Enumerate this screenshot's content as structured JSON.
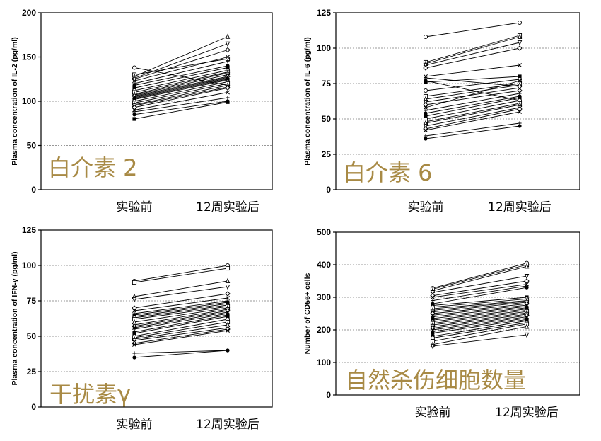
{
  "chart_data": [
    {
      "type": "line",
      "overlay_label": "白介素 2",
      "ylabel": "Plasma concentration of IL-2 (pg/ml)",
      "ylim": [
        0,
        200
      ],
      "yticks": [
        0,
        50,
        100,
        150,
        200
      ],
      "categories": [
        "实验前",
        "12周实验后"
      ],
      "grid": "horizontal dotted",
      "pairs": [
        [
          138,
          118
        ],
        [
          130,
          148
        ],
        [
          128,
          173
        ],
        [
          126,
          165
        ],
        [
          125,
          158
        ],
        [
          123,
          150
        ],
        [
          120,
          145
        ],
        [
          118,
          140
        ],
        [
          115,
          138
        ],
        [
          112,
          135
        ],
        [
          110,
          133
        ],
        [
          108,
          132
        ],
        [
          107,
          130
        ],
        [
          106,
          128
        ],
        [
          105,
          127
        ],
        [
          104,
          126
        ],
        [
          103,
          125
        ],
        [
          102,
          124
        ],
        [
          100,
          122
        ],
        [
          98,
          120
        ],
        [
          96,
          118
        ],
        [
          95,
          116
        ],
        [
          93,
          115
        ],
        [
          90,
          110
        ],
        [
          88,
          104
        ],
        [
          85,
          100
        ],
        [
          80,
          99
        ]
      ]
    },
    {
      "type": "line",
      "overlay_label": "白介素 6",
      "ylabel": "Plasma concentration of IL-6 (pg/ml)",
      "ylim": [
        0,
        125
      ],
      "yticks": [
        0,
        25,
        50,
        75,
        100,
        125
      ],
      "categories": [
        "实验前",
        "12周实验后"
      ],
      "grid": "horizontal dotted",
      "pairs": [
        [
          108,
          118
        ],
        [
          90,
          109
        ],
        [
          89,
          108
        ],
        [
          88,
          104
        ],
        [
          86,
          100
        ],
        [
          80,
          88
        ],
        [
          79,
          73
        ],
        [
          77,
          63
        ],
        [
          76,
          80
        ],
        [
          70,
          78
        ],
        [
          66,
          75
        ],
        [
          64,
          74
        ],
        [
          62,
          72
        ],
        [
          60,
          70
        ],
        [
          58,
          77
        ],
        [
          56,
          68
        ],
        [
          54,
          66
        ],
        [
          52,
          65
        ],
        [
          50,
          63
        ],
        [
          48,
          61
        ],
        [
          47,
          60
        ],
        [
          45,
          58
        ],
        [
          43,
          57
        ],
        [
          42,
          55
        ],
        [
          38,
          47
        ],
        [
          36,
          45
        ]
      ]
    },
    {
      "type": "line",
      "overlay_label": "干扰素γ",
      "ylabel": "Plasma concentration of IFN-γ (pg/ml)",
      "ylim": [
        0,
        125
      ],
      "yticks": [
        0,
        25,
        50,
        75,
        100,
        125
      ],
      "categories": [
        "实验前",
        "12周实验后"
      ],
      "grid": "horizontal dotted",
      "pairs": [
        [
          89,
          100
        ],
        [
          88,
          98
        ],
        [
          78,
          89
        ],
        [
          76,
          85
        ],
        [
          70,
          80
        ],
        [
          68,
          77
        ],
        [
          66,
          75
        ],
        [
          65,
          74
        ],
        [
          64,
          73
        ],
        [
          63,
          72
        ],
        [
          62,
          71
        ],
        [
          60,
          70
        ],
        [
          58,
          69
        ],
        [
          57,
          68
        ],
        [
          56,
          67
        ],
        [
          55,
          66
        ],
        [
          53,
          65
        ],
        [
          52,
          64
        ],
        [
          50,
          62
        ],
        [
          49,
          60
        ],
        [
          48,
          58
        ],
        [
          47,
          56
        ],
        [
          45,
          55
        ],
        [
          44,
          54
        ],
        [
          38,
          40
        ],
        [
          35,
          40
        ]
      ]
    },
    {
      "type": "line",
      "overlay_label": "自然杀伤细胞数量",
      "ylabel": "Number of CD56+ cells",
      "ylim": [
        0,
        500
      ],
      "yticks": [
        0,
        100,
        200,
        300,
        400,
        500
      ],
      "categories": [
        "实验前",
        "12周实验后"
      ],
      "grid": "horizontal dotted",
      "pairs": [
        [
          328,
          405
        ],
        [
          325,
          400
        ],
        [
          320,
          395
        ],
        [
          315,
          365
        ],
        [
          305,
          350
        ],
        [
          300,
          340
        ],
        [
          290,
          335
        ],
        [
          280,
          330
        ],
        [
          275,
          300
        ],
        [
          270,
          295
        ],
        [
          265,
          290
        ],
        [
          260,
          288
        ],
        [
          255,
          285
        ],
        [
          250,
          280
        ],
        [
          245,
          276
        ],
        [
          240,
          272
        ],
        [
          235,
          268
        ],
        [
          230,
          264
        ],
        [
          225,
          260
        ],
        [
          220,
          256
        ],
        [
          215,
          252
        ],
        [
          210,
          248
        ],
        [
          205,
          244
        ],
        [
          200,
          240
        ],
        [
          195,
          236
        ],
        [
          190,
          232
        ],
        [
          180,
          228
        ],
        [
          175,
          222
        ],
        [
          165,
          218
        ],
        [
          155,
          210
        ],
        [
          150,
          185
        ]
      ]
    }
  ]
}
